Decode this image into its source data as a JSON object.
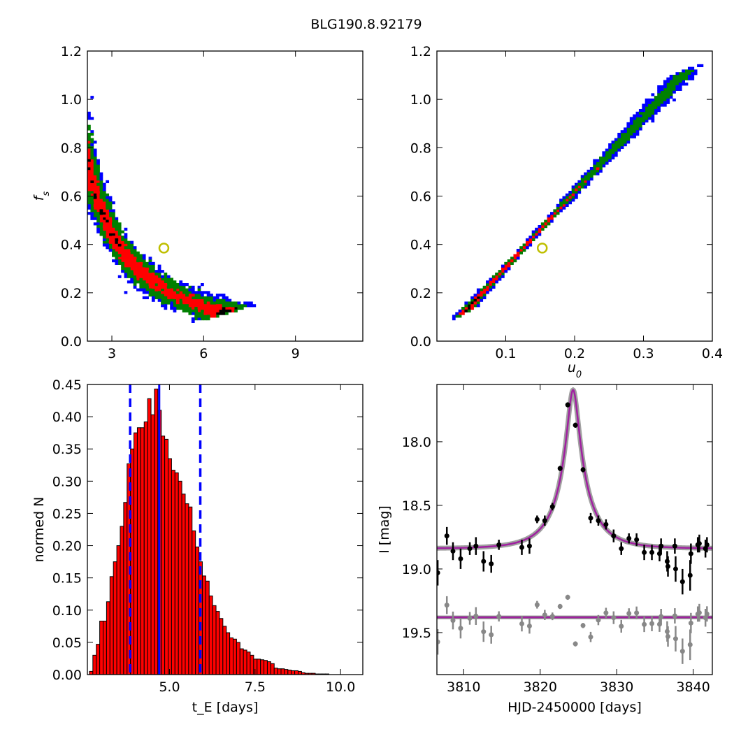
{
  "title": "BLG190.8.92179",
  "chart_data": [
    {
      "type": "heatmap",
      "panel": "top-left",
      "xlabel": "",
      "ylabel": "f_s",
      "xlim": [
        2.2,
        11.2
      ],
      "ylim": [
        0.0,
        1.2
      ],
      "xticks": [
        3,
        6,
        9
      ],
      "xtick_labels": [
        "3",
        "6",
        "9"
      ],
      "yticks": [
        0.0,
        0.2,
        0.4,
        0.6,
        0.8,
        1.0,
        1.2
      ],
      "ytick_labels": [
        "0.0",
        "0.2",
        "0.4",
        "0.6",
        "0.8",
        "1.0",
        "1.2"
      ],
      "band_colors": {
        "outer": "#0000ff",
        "mid": "#008000",
        "inner": "#ff0000",
        "core": "#000000"
      },
      "best_fit": {
        "x": 4.7,
        "y": 0.385,
        "color": "#bfbf00"
      }
    },
    {
      "type": "heatmap",
      "panel": "top-right",
      "xlabel": "u_0",
      "ylabel": "",
      "xlim": [
        0.0,
        0.4
      ],
      "ylim": [
        0.0,
        1.2
      ],
      "xticks": [
        0.1,
        0.2,
        0.3,
        0.4
      ],
      "xtick_labels": [
        "0.1",
        "0.2",
        "0.3",
        "0.4"
      ],
      "yticks": [
        0.0,
        0.2,
        0.4,
        0.6,
        0.8,
        1.0,
        1.2
      ],
      "ytick_labels": [
        "0.0",
        "0.2",
        "0.4",
        "0.6",
        "0.8",
        "1.0",
        "1.2"
      ],
      "band_colors": {
        "outer": "#0000ff",
        "mid": "#008000",
        "inner": "#ff0000",
        "core": "#000000"
      },
      "best_fit": {
        "x": 0.153,
        "y": 0.385,
        "color": "#bfbf00"
      }
    },
    {
      "type": "bar",
      "panel": "bottom-left",
      "xlabel": "t_E [days]",
      "ylabel": "normed N",
      "xlim": [
        2.6,
        10.65
      ],
      "ylim": [
        0.0,
        0.45
      ],
      "xticks": [
        5.0,
        7.5,
        10.0
      ],
      "xtick_labels": [
        "5.0",
        "7.5",
        "10.0"
      ],
      "yticks": [
        0.0,
        0.05,
        0.1,
        0.15,
        0.2,
        0.25,
        0.3,
        0.35,
        0.4,
        0.45
      ],
      "ytick_labels": [
        "0.00",
        "0.05",
        "0.10",
        "0.15",
        "0.20",
        "0.25",
        "0.30",
        "0.35",
        "0.40",
        "0.45"
      ],
      "bin_start": 2.66,
      "bin_width": 0.1,
      "values": [
        0.005,
        0.03,
        0.047,
        0.083,
        0.083,
        0.113,
        0.152,
        0.175,
        0.2,
        0.23,
        0.267,
        0.327,
        0.35,
        0.375,
        0.383,
        0.383,
        0.392,
        0.428,
        0.403,
        0.443,
        0.41,
        0.37,
        0.365,
        0.335,
        0.317,
        0.313,
        0.3,
        0.28,
        0.265,
        0.26,
        0.223,
        0.198,
        0.175,
        0.153,
        0.145,
        0.122,
        0.107,
        0.098,
        0.087,
        0.075,
        0.065,
        0.057,
        0.055,
        0.05,
        0.04,
        0.038,
        0.035,
        0.03,
        0.024,
        0.024,
        0.023,
        0.022,
        0.02,
        0.017,
        0.01,
        0.009,
        0.009,
        0.008,
        0.007,
        0.006,
        0.006,
        0.005,
        0.003,
        0.002,
        0.002,
        0.002,
        0.001,
        0.001,
        0.001,
        0.001,
        0.0,
        0.0,
        0.0,
        0.0,
        0.0,
        0.0,
        0.0,
        0.0,
        0.0,
        0.0
      ],
      "bar_color": "#ff0000",
      "median": 4.7,
      "lower_bound": 3.85,
      "upper_bound": 5.9,
      "line_color": "#0000ff"
    },
    {
      "type": "scatter",
      "panel": "bottom-right",
      "xlabel": "HJD-2450000 [days]",
      "ylabel": "I [mag]",
      "xlim": [
        3806.5,
        3842.5
      ],
      "ylim": [
        19.83,
        17.55
      ],
      "xticks": [
        3810,
        3820,
        3830,
        3840
      ],
      "xtick_labels": [
        "3810",
        "3820",
        "3830",
        "3840"
      ],
      "yticks": [
        18.0,
        18.5,
        19.0,
        19.5
      ],
      "ytick_labels": [
        "18.0",
        "18.5",
        "19.0",
        "19.5"
      ],
      "model": {
        "t0": 3824.3,
        "tE": 4.7,
        "u0": 0.153,
        "baseline": 18.84,
        "color": "#a020a0"
      },
      "residual_baseline": 19.38,
      "residual_offset": 0.54,
      "data": [
        {
          "x": 3806.6,
          "y": 19.03,
          "err": 0.1
        },
        {
          "x": 3807.8,
          "y": 18.74,
          "err": 0.07
        },
        {
          "x": 3808.6,
          "y": 18.86,
          "err": 0.07
        },
        {
          "x": 3809.6,
          "y": 18.92,
          "err": 0.08
        },
        {
          "x": 3810.8,
          "y": 18.84,
          "err": 0.05
        },
        {
          "x": 3811.6,
          "y": 18.82,
          "err": 0.07
        },
        {
          "x": 3812.6,
          "y": 18.94,
          "err": 0.08
        },
        {
          "x": 3813.6,
          "y": 18.96,
          "err": 0.07
        },
        {
          "x": 3814.6,
          "y": 18.81,
          "err": 0.04
        },
        {
          "x": 3817.6,
          "y": 18.83,
          "err": 0.06
        },
        {
          "x": 3818.6,
          "y": 18.82,
          "err": 0.06
        },
        {
          "x": 3819.6,
          "y": 18.61,
          "err": 0.03
        },
        {
          "x": 3820.6,
          "y": 18.62,
          "err": 0.04
        },
        {
          "x": 3821.6,
          "y": 18.51,
          "err": 0.03
        },
        {
          "x": 3822.6,
          "y": 18.21,
          "err": 0.02
        },
        {
          "x": 3823.6,
          "y": 17.71,
          "err": 0.02
        },
        {
          "x": 3824.6,
          "y": 17.87,
          "err": 0.02
        },
        {
          "x": 3825.6,
          "y": 18.22,
          "err": 0.02
        },
        {
          "x": 3826.6,
          "y": 18.6,
          "err": 0.04
        },
        {
          "x": 3827.6,
          "y": 18.62,
          "err": 0.04
        },
        {
          "x": 3828.6,
          "y": 18.65,
          "err": 0.04
        },
        {
          "x": 3829.6,
          "y": 18.74,
          "err": 0.05
        },
        {
          "x": 3830.6,
          "y": 18.84,
          "err": 0.05
        },
        {
          "x": 3831.6,
          "y": 18.76,
          "err": 0.04
        },
        {
          "x": 3832.6,
          "y": 18.77,
          "err": 0.05
        },
        {
          "x": 3833.6,
          "y": 18.87,
          "err": 0.06
        },
        {
          "x": 3834.6,
          "y": 18.87,
          "err": 0.06
        },
        {
          "x": 3835.6,
          "y": 18.88,
          "err": 0.06
        },
        {
          "x": 3835.8,
          "y": 18.82,
          "err": 0.06
        },
        {
          "x": 3836.6,
          "y": 18.94,
          "err": 0.08
        },
        {
          "x": 3836.7,
          "y": 18.98,
          "err": 0.08
        },
        {
          "x": 3837.6,
          "y": 18.82,
          "err": 0.06
        },
        {
          "x": 3837.7,
          "y": 19.0,
          "err": 0.1
        },
        {
          "x": 3838.6,
          "y": 19.1,
          "err": 0.1
        },
        {
          "x": 3839.6,
          "y": 19.05,
          "err": 0.12
        },
        {
          "x": 3839.7,
          "y": 18.88,
          "err": 0.08
        },
        {
          "x": 3840.6,
          "y": 18.81,
          "err": 0.06
        },
        {
          "x": 3840.8,
          "y": 18.8,
          "err": 0.07
        },
        {
          "x": 3841.6,
          "y": 18.84,
          "err": 0.07
        },
        {
          "x": 3841.8,
          "y": 18.81,
          "err": 0.06
        }
      ]
    }
  ]
}
